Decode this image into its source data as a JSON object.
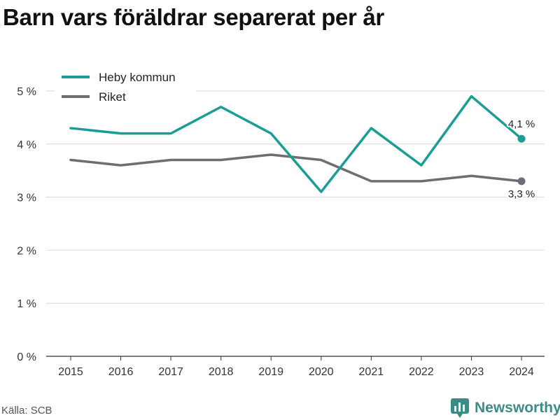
{
  "title": "Barn vars föräldrar separerat per år",
  "source": "Källa: SCB",
  "brand": "Newsworthy",
  "colors": {
    "heby": "#1a9e94",
    "riket": "#6e6d76",
    "grid": "#d9d9d9",
    "brand": "#3a8c85"
  },
  "chart_data": {
    "type": "line",
    "x": [
      2015,
      2016,
      2017,
      2018,
      2019,
      2020,
      2021,
      2022,
      2023,
      2024
    ],
    "ylim": [
      0,
      5
    ],
    "yticks": [
      0,
      1,
      2,
      3,
      4,
      5
    ],
    "ytick_labels": [
      "0 %",
      "1 %",
      "2 %",
      "3 %",
      "4 %",
      "5 %"
    ],
    "grid": true,
    "legend_position": "top-left",
    "series": [
      {
        "name": "Heby kommun",
        "values": [
          4.3,
          4.2,
          4.2,
          4.7,
          4.2,
          3.1,
          4.3,
          3.6,
          4.9,
          4.1
        ],
        "end_label": "4,1 %"
      },
      {
        "name": "Riket",
        "values": [
          3.7,
          3.6,
          3.7,
          3.7,
          3.8,
          3.7,
          3.3,
          3.3,
          3.4,
          3.3
        ],
        "end_label": "3,3 %"
      }
    ]
  }
}
